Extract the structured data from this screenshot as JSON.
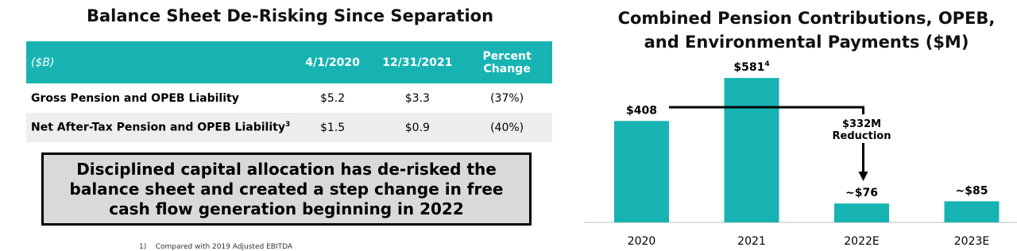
{
  "left": {
    "title": "Balance Sheet De-Risking Since Separation",
    "table": {
      "header": [
        "($B)",
        "4/1/2020",
        "12/31/2021",
        "Percent Change"
      ],
      "rows": [
        [
          "Gross Pension and OPEB Liability",
          "$5.2",
          "$3.3",
          "(37%)"
        ],
        [
          "Net After-Tax Pension and OPEB Liability",
          "$1.5",
          "$0.9",
          "(40%)"
        ]
      ],
      "row_notes": [
        null,
        "3"
      ]
    },
    "callout": "Disciplined capital allocation has de-risked the balance sheet and created a step change in free cash flow generation beginning in 2022",
    "footnote": {
      "marker": "1)",
      "text": "Compared with 2019 Adjusted EBITDA"
    }
  },
  "chart_data": {
    "type": "bar",
    "title": "Combined Pension Contributions, OPEB, and Environmental Payments ($M)",
    "categories": [
      "2020",
      "2021",
      "2022E",
      "2023E"
    ],
    "values": [
      408,
      581,
      76,
      85
    ],
    "value_labels": [
      "$408",
      "$581",
      "~$76",
      "~$85"
    ],
    "value_label_notes": [
      null,
      "4",
      null,
      null
    ],
    "color": "#17b3b3",
    "annotation": [
      "$332M",
      "Reduction"
    ]
  }
}
